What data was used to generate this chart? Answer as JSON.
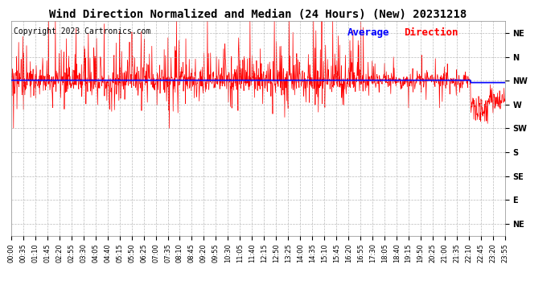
{
  "title": "Wind Direction Normalized and Median (24 Hours) (New) 20231218",
  "copyright_text": "Copyright 2023 Cartronics.com",
  "legend_color": "blue",
  "legend_label_color": "red",
  "background_color": "#ffffff",
  "plot_bg_color": "#ffffff",
  "grid_color": "#aaaaaa",
  "grid_style": "--",
  "red_line_color": "red",
  "blue_line_color": "blue",
  "y_tick_labels": [
    "NE",
    "N",
    "NW",
    "W",
    "SW",
    "S",
    "SE",
    "E",
    "NE"
  ],
  "y_tick_values": [
    8,
    7,
    6,
    5,
    4,
    3,
    2,
    1,
    0
  ],
  "y_min": -0.5,
  "y_max": 8.5,
  "nw_level": 6.0,
  "avg_direction_value": 6.02,
  "x_tick_labels": [
    "00:00",
    "00:35",
    "01:10",
    "01:45",
    "02:20",
    "02:55",
    "03:30",
    "04:05",
    "04:40",
    "05:15",
    "05:50",
    "06:25",
    "07:00",
    "07:35",
    "08:10",
    "08:45",
    "09:20",
    "09:55",
    "10:30",
    "11:05",
    "11:40",
    "12:15",
    "12:50",
    "13:25",
    "14:00",
    "14:35",
    "15:10",
    "15:45",
    "16:20",
    "16:55",
    "17:30",
    "18:05",
    "18:40",
    "19:15",
    "19:50",
    "20:25",
    "21:00",
    "21:35",
    "22:10",
    "22:45",
    "23:20",
    "23:55"
  ],
  "title_fontsize": 10,
  "tick_fontsize": 7,
  "copyright_fontsize": 7,
  "legend_fontsize": 9
}
